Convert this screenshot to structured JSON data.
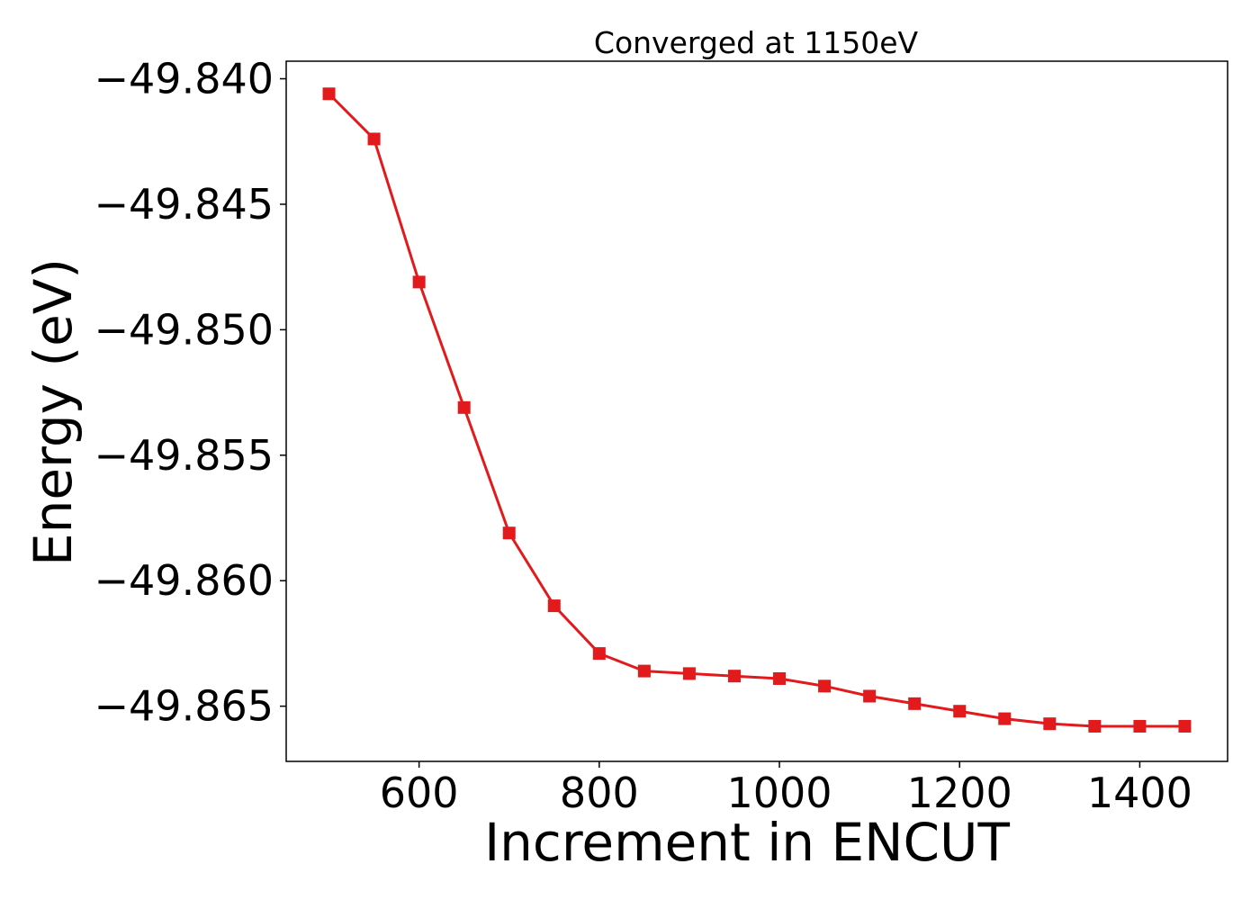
{
  "chart_data": {
    "type": "line",
    "title": "Converged at 1150eV",
    "xlabel": "Increment in ENCUT",
    "ylabel": "Energy (eV)",
    "xlim": [
      452.5,
      1497.5
    ],
    "ylim": [
      -49.8672,
      -49.8393
    ],
    "x_ticks": [
      600,
      800,
      1000,
      1200,
      1400
    ],
    "x_tick_labels": [
      "600",
      "800",
      "1000",
      "1200",
      "1400"
    ],
    "y_ticks": [
      -49.84,
      -49.845,
      -49.85,
      -49.855,
      -49.86,
      -49.865
    ],
    "y_tick_labels": [
      "−49.840",
      "−49.845",
      "−49.850",
      "−49.855",
      "−49.860",
      "−49.865"
    ],
    "grid": false,
    "marker": "square",
    "series": [
      {
        "color": "#e31a1c",
        "x": [
          500,
          550,
          600,
          650,
          700,
          750,
          800,
          850,
          900,
          950,
          1000,
          1050,
          1100,
          1150,
          1200,
          1250,
          1300,
          1350,
          1400,
          1450
        ],
        "y": [
          -49.8406,
          -49.8424,
          -49.8481,
          -49.8531,
          -49.8581,
          -49.861,
          -49.8629,
          -49.8636,
          -49.8637,
          -49.8638,
          -49.8639,
          -49.8642,
          -49.8646,
          -49.8649,
          -49.8652,
          -49.8655,
          -49.8657,
          -49.8658,
          -49.8658,
          -49.8658
        ]
      }
    ]
  }
}
